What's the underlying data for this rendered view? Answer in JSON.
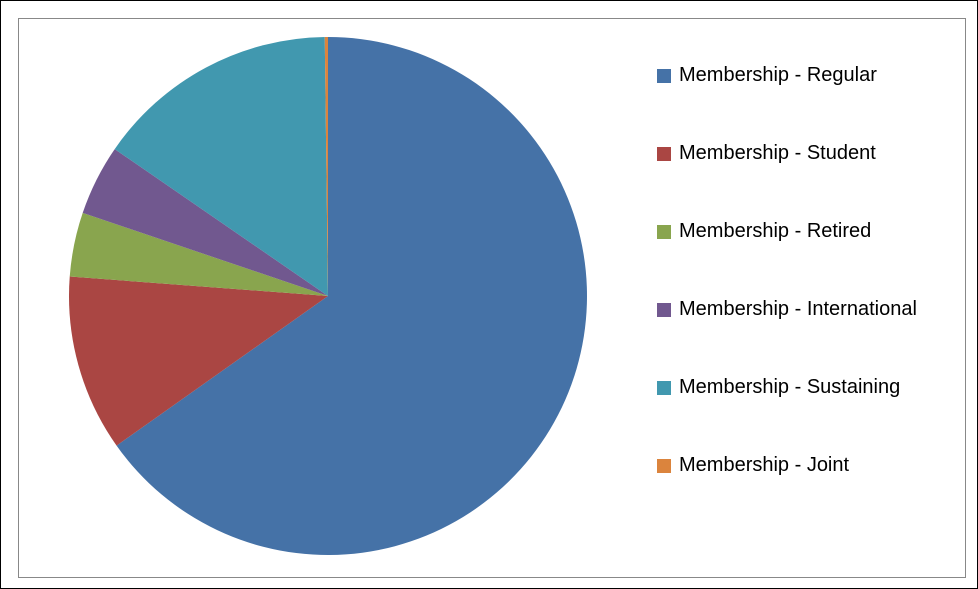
{
  "chart_data": {
    "type": "pie",
    "categories": [
      "Membership - Regular",
      "Membership - Student",
      "Membership - Retired",
      "Membership - International",
      "Membership - Sustaining",
      "Membership - Joint"
    ],
    "values": [
      65.2,
      11,
      4,
      4.4,
      15.2,
      0.2
    ],
    "colors": [
      "#4572a7",
      "#aa4643",
      "#89a54e",
      "#71588f",
      "#4198af",
      "#db843d"
    ],
    "legend": "right"
  }
}
